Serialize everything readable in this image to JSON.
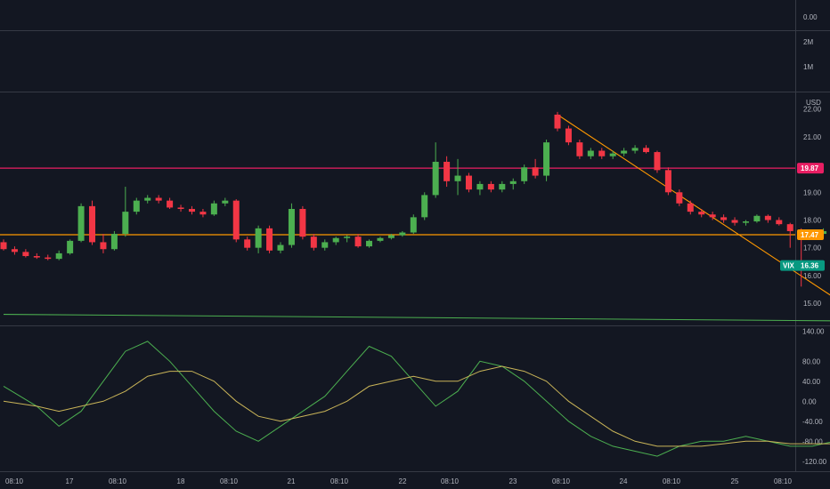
{
  "chart_data": [
    {
      "type": "line",
      "pane": "volume",
      "y_tick_labels": [
        "0.00",
        "1M",
        "2M"
      ]
    },
    {
      "type": "candlestick",
      "pane": "price",
      "symbol": "VIX",
      "currency": "USD",
      "y_tick_labels": [
        "15.00",
        "16.00",
        "17.00",
        "18.00",
        "19.00",
        "21.00",
        "22.00"
      ],
      "ylim": [
        14.2,
        22.6
      ],
      "horizontal_lines": [
        {
          "value": 19.87,
          "label": "19.87",
          "color": "#e91e63"
        },
        {
          "value": 17.47,
          "label": "17.47",
          "color": "#ff9800"
        }
      ],
      "trendlines": [
        {
          "from": [
            21.0,
            21.8
          ],
          "to": [
            23.8,
            14.4
          ],
          "color": "#ff9800"
        },
        {
          "from": [
            16.0,
            14.6
          ],
          "to": [
            25.55,
            14.3
          ],
          "color": "#4caf50"
        }
      ],
      "last_price": {
        "label": "16.36",
        "symbol": "VIX",
        "color": "#089981"
      },
      "colors": {
        "up": "#4caf50",
        "down": "#f23645"
      },
      "candles": [
        [
          16.0,
          17.2,
          17.3,
          16.9,
          16.95
        ],
        [
          16.1,
          16.95,
          17.05,
          16.75,
          16.85
        ],
        [
          16.2,
          16.85,
          16.95,
          16.65,
          16.7
        ],
        [
          16.3,
          16.7,
          16.8,
          16.6,
          16.65
        ],
        [
          16.4,
          16.65,
          16.75,
          16.55,
          16.6
        ],
        [
          16.5,
          16.6,
          16.9,
          16.55,
          16.8
        ],
        [
          16.6,
          16.8,
          17.3,
          16.75,
          17.25
        ],
        [
          16.7,
          17.25,
          18.6,
          17.2,
          18.5
        ],
        [
          16.8,
          18.5,
          18.7,
          17.1,
          17.2
        ],
        [
          16.9,
          17.2,
          17.5,
          16.8,
          16.95
        ],
        [
          17.0,
          16.95,
          17.6,
          16.9,
          17.5
        ],
        [
          17.1,
          17.5,
          19.2,
          17.4,
          18.3
        ],
        [
          17.2,
          18.3,
          18.8,
          18.2,
          18.7
        ],
        [
          17.3,
          18.7,
          18.9,
          18.6,
          18.8
        ],
        [
          17.4,
          18.8,
          18.9,
          18.6,
          18.7
        ],
        [
          17.5,
          18.7,
          18.8,
          18.4,
          18.45
        ],
        [
          17.6,
          18.45,
          18.55,
          18.3,
          18.4
        ],
        [
          17.7,
          18.4,
          18.5,
          18.2,
          18.3
        ],
        [
          17.8,
          18.3,
          18.4,
          18.1,
          18.2
        ],
        [
          17.9,
          18.2,
          18.7,
          18.15,
          18.6
        ],
        [
          18.0,
          18.6,
          18.8,
          18.5,
          18.7
        ],
        [
          18.1,
          18.7,
          18.75,
          17.2,
          17.3
        ],
        [
          18.2,
          17.3,
          17.4,
          16.9,
          17.0
        ],
        [
          18.3,
          17.0,
          17.8,
          16.8,
          17.7
        ],
        [
          18.4,
          17.7,
          17.8,
          16.8,
          16.9
        ],
        [
          18.5,
          16.9,
          17.2,
          16.8,
          17.1
        ],
        [
          18.6,
          17.1,
          18.6,
          17.0,
          18.4
        ],
        [
          18.7,
          18.4,
          18.5,
          17.3,
          17.4
        ],
        [
          18.8,
          17.4,
          17.5,
          16.9,
          17.0
        ],
        [
          18.9,
          17.0,
          17.3,
          16.9,
          17.2
        ],
        [
          19.0,
          17.2,
          17.4,
          17.1,
          17.35
        ],
        [
          19.1,
          17.35,
          17.45,
          17.2,
          17.4
        ],
        [
          19.2,
          17.4,
          17.5,
          17.0,
          17.05
        ],
        [
          19.3,
          17.05,
          17.3,
          17.0,
          17.25
        ],
        [
          19.4,
          17.25,
          17.4,
          17.2,
          17.35
        ],
        [
          19.5,
          17.35,
          17.5,
          17.3,
          17.45
        ],
        [
          19.6,
          17.45,
          17.6,
          17.4,
          17.55
        ],
        [
          19.7,
          17.55,
          18.2,
          17.5,
          18.1
        ],
        [
          19.8,
          18.1,
          19.0,
          18.0,
          18.9
        ],
        [
          19.9,
          18.9,
          20.8,
          18.8,
          20.1
        ],
        [
          20.0,
          20.1,
          20.3,
          19.2,
          19.4
        ],
        [
          20.1,
          19.4,
          20.2,
          18.9,
          19.6
        ],
        [
          20.2,
          19.6,
          19.7,
          19.0,
          19.1
        ],
        [
          20.3,
          19.1,
          19.4,
          18.9,
          19.3
        ],
        [
          20.4,
          19.3,
          19.4,
          19.0,
          19.1
        ],
        [
          20.5,
          19.1,
          19.4,
          19.0,
          19.3
        ],
        [
          20.6,
          19.3,
          19.5,
          19.1,
          19.4
        ],
        [
          20.7,
          19.4,
          20.0,
          19.3,
          19.9
        ],
        [
          20.8,
          19.9,
          20.2,
          19.5,
          19.6
        ],
        [
          20.9,
          19.6,
          20.9,
          19.4,
          20.8
        ],
        [
          21.0,
          21.8,
          21.9,
          21.2,
          21.3
        ],
        [
          21.1,
          21.3,
          21.4,
          20.7,
          20.8
        ],
        [
          21.2,
          20.8,
          20.9,
          20.2,
          20.3
        ],
        [
          21.3,
          20.3,
          20.6,
          20.2,
          20.5
        ],
        [
          21.4,
          20.5,
          20.6,
          20.2,
          20.3
        ],
        [
          21.5,
          20.3,
          20.5,
          20.2,
          20.4
        ],
        [
          21.6,
          20.4,
          20.6,
          20.3,
          20.5
        ],
        [
          21.7,
          20.5,
          20.7,
          20.4,
          20.6
        ],
        [
          21.8,
          20.6,
          20.7,
          20.4,
          20.45
        ],
        [
          21.9,
          20.45,
          20.5,
          19.7,
          19.8
        ],
        [
          22.0,
          19.8,
          19.9,
          18.9,
          19.0
        ],
        [
          22.1,
          19.0,
          19.1,
          18.5,
          18.6
        ],
        [
          22.2,
          18.6,
          18.7,
          18.2,
          18.3
        ],
        [
          22.3,
          18.3,
          18.4,
          18.1,
          18.2
        ],
        [
          22.4,
          18.2,
          18.3,
          18.0,
          18.1
        ],
        [
          22.5,
          18.1,
          18.2,
          17.9,
          18.0
        ],
        [
          22.6,
          18.0,
          18.1,
          17.8,
          17.9
        ],
        [
          22.7,
          17.9,
          18.0,
          17.8,
          17.95
        ],
        [
          22.8,
          17.95,
          18.2,
          17.9,
          18.15
        ],
        [
          22.9,
          18.15,
          18.2,
          17.9,
          18.0
        ],
        [
          23.0,
          18.0,
          18.1,
          17.8,
          17.85
        ],
        [
          23.1,
          17.85,
          17.9,
          17.0,
          17.6
        ],
        [
          23.2,
          17.6,
          17.7,
          15.6,
          17.4
        ],
        [
          23.3,
          17.4,
          17.6,
          17.3,
          17.5
        ],
        [
          23.4,
          17.5,
          17.7,
          17.4,
          17.6
        ],
        [
          23.5,
          17.6,
          17.7,
          17.2,
          17.3
        ],
        [
          23.6,
          17.3,
          17.4,
          16.9,
          17.0
        ],
        [
          23.7,
          17.0,
          17.1,
          16.85,
          16.95
        ],
        [
          23.8,
          16.95,
          17.05,
          16.9,
          17.0
        ],
        [
          23.9,
          17.0,
          17.2,
          16.95,
          17.1
        ],
        [
          24.0,
          17.1,
          17.2,
          16.9,
          16.95
        ],
        [
          24.1,
          16.95,
          17.0,
          16.7,
          16.75
        ],
        [
          24.2,
          16.75,
          16.8,
          16.5,
          16.55
        ],
        [
          24.3,
          16.55,
          16.7,
          16.5,
          16.65
        ],
        [
          24.4,
          16.65,
          16.75,
          16.55,
          16.6
        ],
        [
          24.5,
          16.6,
          16.7,
          16.5,
          16.65
        ],
        [
          24.6,
          16.65,
          16.8,
          16.6,
          16.75
        ],
        [
          24.7,
          16.75,
          16.8,
          15.4,
          15.8
        ],
        [
          24.8,
          15.8,
          16.8,
          15.7,
          16.36
        ]
      ]
    },
    {
      "type": "line",
      "pane": "oscillator",
      "y_tick_labels": [
        "140.00",
        "80.00",
        "40.00",
        "0.00",
        "-40.00",
        "-80.00",
        "-120.00"
      ],
      "ylim": [
        -140,
        150
      ],
      "series": [
        {
          "color": "#4caf50",
          "x": [
            16.0,
            16.3,
            16.5,
            16.7,
            16.9,
            17.1,
            17.3,
            17.5,
            17.7,
            17.9,
            18.1,
            18.3,
            18.5,
            18.7,
            18.9,
            19.1,
            19.3,
            19.5,
            19.7,
            19.9,
            20.1,
            20.3,
            20.5,
            20.7,
            20.9,
            21.1,
            21.3,
            21.5,
            21.7,
            21.9,
            22.1,
            22.3,
            22.5,
            22.7,
            22.9,
            23.1,
            23.3,
            23.5,
            23.7,
            23.9,
            24.1,
            24.3,
            24.5,
            24.7,
            24.8,
            24.9
          ],
          "y": [
            30,
            -10,
            -50,
            -20,
            40,
            100,
            120,
            80,
            30,
            -20,
            -60,
            -80,
            -50,
            -20,
            10,
            60,
            110,
            90,
            40,
            -10,
            20,
            80,
            70,
            40,
            0,
            -40,
            -70,
            -90,
            -100,
            -110,
            -90,
            -80,
            -80,
            -70,
            -80,
            -90,
            -90,
            -80,
            -80,
            -80,
            -80,
            -90,
            -80,
            -80,
            -50,
            -60
          ]
        },
        {
          "color": "#c9b458",
          "x": [
            16.0,
            16.3,
            16.5,
            16.7,
            16.9,
            17.1,
            17.3,
            17.5,
            17.7,
            17.9,
            18.1,
            18.3,
            18.5,
            18.7,
            18.9,
            19.1,
            19.3,
            19.5,
            19.7,
            19.9,
            20.1,
            20.3,
            20.5,
            20.7,
            20.9,
            21.1,
            21.3,
            21.5,
            21.7,
            21.9,
            22.1,
            22.3,
            22.5,
            22.7,
            22.9,
            23.1,
            23.3,
            23.5,
            23.7,
            23.9,
            24.1,
            24.3,
            24.5,
            24.7,
            24.8,
            24.9
          ],
          "y": [
            0,
            -10,
            -20,
            -10,
            0,
            20,
            50,
            60,
            60,
            40,
            0,
            -30,
            -40,
            -30,
            -20,
            0,
            30,
            40,
            50,
            40,
            40,
            60,
            70,
            60,
            40,
            0,
            -30,
            -60,
            -80,
            -90,
            -90,
            -90,
            -85,
            -80,
            -80,
            -85,
            -85,
            -85,
            -80,
            -80,
            -80,
            -85,
            -80,
            -80,
            -65,
            -65
          ]
        }
      ]
    }
  ],
  "time_axis": {
    "labels": [
      "08:10",
      "17",
      "08:10",
      "18",
      "08:10",
      "21",
      "08:10",
      "22",
      "08:10",
      "23",
      "08:10",
      "24",
      "08:10",
      "25",
      "08:10"
    ]
  },
  "colors": {
    "background": "#131722",
    "grid": "#1e222d",
    "separator": "#363a45",
    "axis_text": "#b2b5be"
  }
}
